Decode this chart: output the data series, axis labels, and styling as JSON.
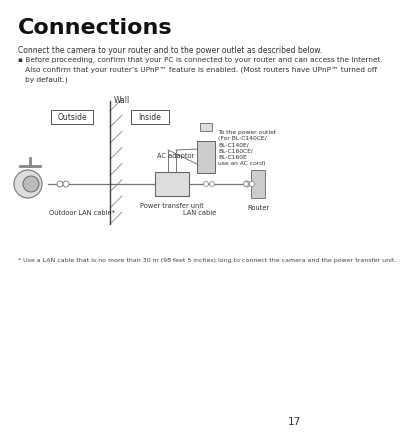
{
  "title": "Connections",
  "title_fontsize": 16,
  "body_text": "Connect the camera to your router and to the power outlet as described below.",
  "bullet_text": "Before proceeding, confirm that your PC is connected to your router and can access the Internet.\n   Also confirm that your router’s UPnP™ feature is enabled. (Most routers have UPnP™ turned off\n   by default.)",
  "footnote": "* Use a LAN cable that is no more than 30 m (98 feet 5 inches) long to connect the camera and the power transfer unit.",
  "page_number": "17",
  "background_color": "#ffffff",
  "text_color": "#333333",
  "diagram": {
    "wall_label": "Wall",
    "outside_label": "Outside",
    "inside_label": "Inside",
    "power_transfer_label": "Power transfer unit",
    "ac_adaptor_label": "AC adaptor",
    "router_label": "Router",
    "outlet_note": "To the power outlet\n(For BL-C140CE/\nBL-C140E/\nBL-C160CE/\nBL-C160E\nuse an AC cord)",
    "outdoor_cable_label": "Outdoor LAN cable*",
    "lan_cable_label": "LAN cable"
  }
}
